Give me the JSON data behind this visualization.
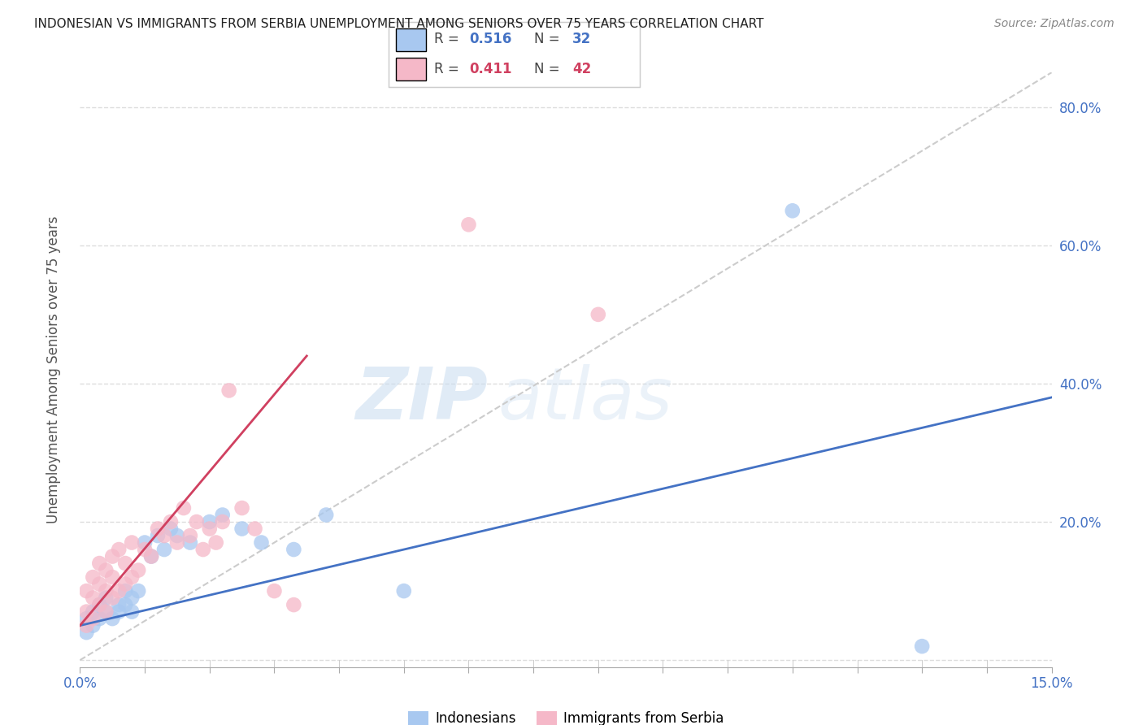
{
  "title": "INDONESIAN VS IMMIGRANTS FROM SERBIA UNEMPLOYMENT AMONG SENIORS OVER 75 YEARS CORRELATION CHART",
  "source": "Source: ZipAtlas.com",
  "ylabel": "Unemployment Among Seniors over 75 years",
  "xlim": [
    0.0,
    0.15
  ],
  "ylim": [
    -0.01,
    0.85
  ],
  "yticks": [
    0.0,
    0.2,
    0.4,
    0.6,
    0.8
  ],
  "ytick_labels": [
    "",
    "20.0%",
    "40.0%",
    "60.0%",
    "80.0%"
  ],
  "color_blue": "#A8C8F0",
  "color_pink": "#F5B8C8",
  "color_blue_line": "#4472C4",
  "color_pink_line": "#D04060",
  "color_diag": "#CCCCCC",
  "watermark_zip": "ZIP",
  "watermark_atlas": "atlas",
  "indonesian_x": [
    0.001,
    0.001,
    0.002,
    0.002,
    0.003,
    0.003,
    0.004,
    0.004,
    0.005,
    0.006,
    0.006,
    0.007,
    0.007,
    0.008,
    0.008,
    0.009,
    0.01,
    0.011,
    0.012,
    0.013,
    0.014,
    0.015,
    0.017,
    0.02,
    0.022,
    0.025,
    0.028,
    0.033,
    0.038,
    0.05,
    0.11,
    0.13
  ],
  "indonesian_y": [
    0.04,
    0.06,
    0.05,
    0.07,
    0.06,
    0.08,
    0.07,
    0.09,
    0.06,
    0.07,
    0.08,
    0.08,
    0.1,
    0.09,
    0.07,
    0.1,
    0.17,
    0.15,
    0.18,
    0.16,
    0.19,
    0.18,
    0.17,
    0.2,
    0.21,
    0.19,
    0.17,
    0.16,
    0.21,
    0.1,
    0.65,
    0.02
  ],
  "serbia_x": [
    0.001,
    0.001,
    0.001,
    0.002,
    0.002,
    0.002,
    0.003,
    0.003,
    0.003,
    0.004,
    0.004,
    0.004,
    0.005,
    0.005,
    0.005,
    0.006,
    0.006,
    0.007,
    0.007,
    0.008,
    0.008,
    0.009,
    0.01,
    0.011,
    0.012,
    0.013,
    0.014,
    0.015,
    0.016,
    0.017,
    0.018,
    0.019,
    0.02,
    0.021,
    0.022,
    0.023,
    0.025,
    0.027,
    0.03,
    0.033,
    0.06,
    0.08
  ],
  "serbia_y": [
    0.05,
    0.07,
    0.1,
    0.06,
    0.09,
    0.12,
    0.08,
    0.11,
    0.14,
    0.07,
    0.1,
    0.13,
    0.09,
    0.12,
    0.15,
    0.1,
    0.16,
    0.11,
    0.14,
    0.12,
    0.17,
    0.13,
    0.16,
    0.15,
    0.19,
    0.18,
    0.2,
    0.17,
    0.22,
    0.18,
    0.2,
    0.16,
    0.19,
    0.17,
    0.2,
    0.39,
    0.22,
    0.19,
    0.1,
    0.08,
    0.63,
    0.5
  ],
  "blue_line_x": [
    0.0,
    0.15
  ],
  "blue_line_y": [
    0.05,
    0.38
  ],
  "pink_line_x": [
    0.0,
    0.035
  ],
  "pink_line_y": [
    0.05,
    0.44
  ],
  "diag_line_x": [
    0.0,
    0.15
  ],
  "diag_line_y": [
    0.0,
    0.85
  ]
}
